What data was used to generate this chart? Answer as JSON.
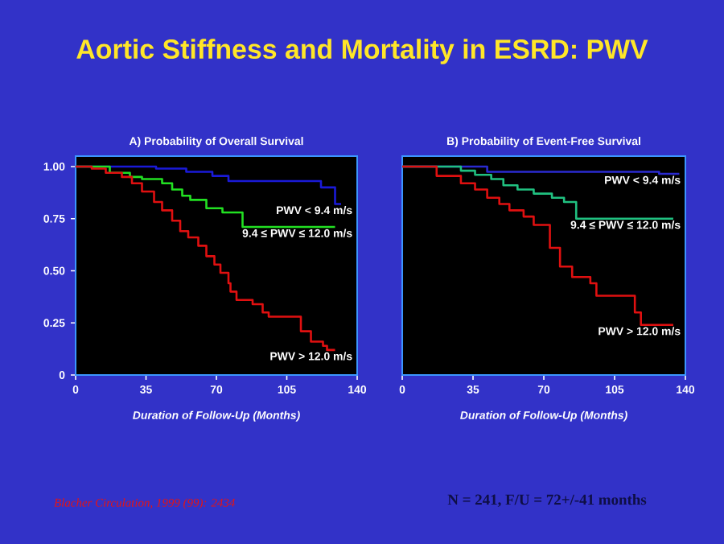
{
  "chart_data": [
    {
      "type": "step",
      "title": "A) Probability of Overall Survival",
      "xlabel": "Duration of Follow-Up (Months)",
      "annotations": [
        "Aortic Stiffness and Mortality in ESRD: PWV",
        "Blacher Circulation, 1999 (99): 2434"
      ],
      "xlim": [
        0,
        140
      ],
      "ylim": [
        0,
        1.05
      ],
      "xticks": [
        0,
        35,
        70,
        105,
        140
      ],
      "yticks": [
        0,
        0.25,
        {
          "value": 0.5,
          "label": "0.50"
        },
        0.75,
        {
          "value": 1,
          "label": "1.00"
        }
      ],
      "series": [
        {
          "name": "PWV < 9.4 m/s",
          "color": "#1a1ad8",
          "x": [
            0,
            40,
            55,
            68,
            76,
            122,
            129,
            132
          ],
          "values": [
            1,
            0.99,
            0.975,
            0.955,
            0.93,
            0.9,
            0.82,
            0.82
          ]
        },
        {
          "name": "9.4 ≤ PWV ≤ 12.0 m/s",
          "color": "#22e022",
          "x": [
            0,
            17,
            27,
            33,
            43,
            48,
            53,
            57,
            65,
            73,
            83,
            129
          ],
          "values": [
            1,
            0.97,
            0.95,
            0.94,
            0.92,
            0.89,
            0.86,
            0.84,
            0.8,
            0.78,
            0.71,
            0.71
          ]
        },
        {
          "name": "PWV > 12.0 m/s",
          "color": "#e01010",
          "x": [
            0,
            8,
            15,
            23,
            28,
            33,
            39,
            43,
            48,
            52,
            56,
            61,
            65,
            69,
            72,
            76,
            77,
            80,
            88,
            93,
            96,
            109,
            112,
            117,
            123,
            125,
            129
          ],
          "values": [
            1,
            0.99,
            0.97,
            0.95,
            0.92,
            0.88,
            0.83,
            0.79,
            0.74,
            0.69,
            0.66,
            0.62,
            0.57,
            0.53,
            0.49,
            0.44,
            0.4,
            0.36,
            0.34,
            0.3,
            0.28,
            0.28,
            0.21,
            0.16,
            0.14,
            0.12,
            0.12
          ]
        }
      ]
    },
    {
      "type": "step",
      "title": "B) Probability of Event-Free Survival",
      "xlabel": "Duration of Follow-Up (Months)",
      "annotations": [
        "N = 241, F/U = 72+/-41 months"
      ],
      "xlim": [
        0,
        140
      ],
      "ylim": [
        0,
        1.05
      ],
      "xticks": [
        0,
        35,
        70,
        105,
        140
      ],
      "tick_labels": "x",
      "series": [
        {
          "name": "PWV < 9.4 m/s",
          "color": "#2a2ad0",
          "x": [
            0,
            42,
            127,
            137
          ],
          "values": [
            1,
            0.975,
            0.965,
            0.965
          ]
        },
        {
          "name": "9.4 ≤ PWV ≤ 12.0 m/s",
          "color": "#20c080",
          "x": [
            0,
            29,
            36,
            44,
            50,
            57,
            65,
            74,
            80,
            86,
            134
          ],
          "values": [
            1,
            0.98,
            0.96,
            0.94,
            0.91,
            0.89,
            0.87,
            0.85,
            0.83,
            0.75,
            0.75
          ]
        },
        {
          "name": "PWV > 12.0 m/s",
          "color": "#e01010",
          "x": [
            0,
            17,
            29,
            36,
            42,
            48,
            53,
            60,
            65,
            73,
            78,
            84,
            93,
            96,
            115,
            118,
            134
          ],
          "values": [
            1,
            0.955,
            0.92,
            0.89,
            0.85,
            0.82,
            0.79,
            0.76,
            0.72,
            0.61,
            0.52,
            0.47,
            0.44,
            0.38,
            0.3,
            0.24,
            0.24
          ]
        }
      ]
    }
  ]
}
